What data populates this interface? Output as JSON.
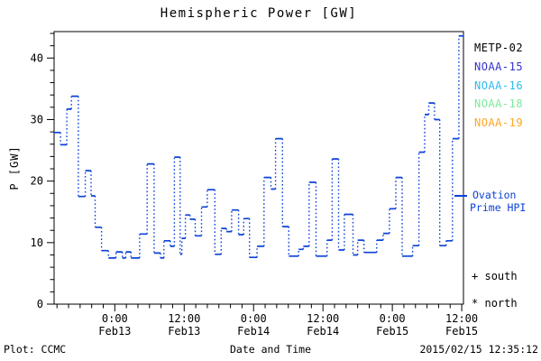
{
  "title": "Hemispheric Power [GW]",
  "y_axis": {
    "label": "P [GW]",
    "ticks": [
      0,
      10,
      20,
      30,
      40
    ],
    "minor_step": 2
  },
  "x_axis": {
    "label": "Date and Time",
    "ticks": [
      {
        "t": 10.5,
        "time": "0:00",
        "date": "Feb13"
      },
      {
        "t": 22.5,
        "time": "12:00",
        "date": "Feb13"
      },
      {
        "t": 34.5,
        "time": "0:00",
        "date": "Feb14"
      },
      {
        "t": 46.5,
        "time": "12:00",
        "date": "Feb14"
      },
      {
        "t": 58.5,
        "time": "0:00",
        "date": "Feb15"
      },
      {
        "t": 70.5,
        "time": "12:00",
        "date": "Feb15"
      }
    ],
    "minor_step_h": 2
  },
  "legend": {
    "satellites": [
      {
        "label": "METP-02",
        "color": "#000000"
      },
      {
        "label": "NOAA-15",
        "color": "#3333CC"
      },
      {
        "label": "NOAA-16",
        "color": "#2FB9F0"
      },
      {
        "label": "NOAA-18",
        "color": "#7FE89E"
      },
      {
        "label": "NOAA-19",
        "color": "#FFA629"
      }
    ],
    "ovation": {
      "line1": "Ovation",
      "line2": "Prime HPI",
      "color": "#0C42D8"
    },
    "markers": [
      {
        "symbol": "+",
        "label": "south"
      },
      {
        "symbol": "*",
        "label": "north"
      }
    ]
  },
  "footer": {
    "left": "Plot: CCMC",
    "right": "2015/02/15 12:35:12"
  },
  "chart_data": {
    "type": "line",
    "style": "step-post, dotted vertical connectors",
    "title": "Hemispheric Power [GW]",
    "xlabel": "Date and Time",
    "ylabel": "P [GW]",
    "ylim": [
      0,
      44.3
    ],
    "xlim_h": [
      0,
      70.8
    ],
    "x_start": "2015-02-12 ~13:30 UT",
    "x_end": "2015-02-15 ~12:20 UT",
    "x_major_tick_every_h": 12,
    "x_minor_tick_every_h": 2,
    "y_minor_tick_every": 2,
    "grid": false,
    "legend_position": "right",
    "series": [
      {
        "name": "Ovation Prime HPI",
        "color": "#0C42D8",
        "units": "GW",
        "steps_t_hours_vs_GW": [
          [
            0.0,
            27.9
          ],
          [
            1.1,
            25.9
          ],
          [
            2.2,
            31.7
          ],
          [
            3.0,
            33.8
          ],
          [
            4.2,
            17.5
          ],
          [
            5.4,
            21.7
          ],
          [
            6.4,
            17.6
          ],
          [
            7.1,
            12.5
          ],
          [
            8.2,
            8.7
          ],
          [
            9.4,
            7.5
          ],
          [
            10.7,
            8.5
          ],
          [
            11.8,
            7.5
          ],
          [
            12.4,
            8.5
          ],
          [
            13.3,
            7.5
          ],
          [
            14.8,
            11.4
          ],
          [
            16.1,
            22.8
          ],
          [
            17.3,
            8.3
          ],
          [
            18.4,
            7.5
          ],
          [
            19.0,
            10.3
          ],
          [
            20.1,
            9.4
          ],
          [
            20.8,
            23.9
          ],
          [
            21.8,
            8.1
          ],
          [
            22.1,
            10.7
          ],
          [
            22.7,
            14.5
          ],
          [
            23.5,
            13.8
          ],
          [
            24.4,
            11.1
          ],
          [
            25.5,
            15.8
          ],
          [
            26.5,
            18.6
          ],
          [
            27.8,
            8.1
          ],
          [
            28.9,
            12.3
          ],
          [
            29.8,
            11.8
          ],
          [
            30.7,
            15.3
          ],
          [
            31.9,
            11.3
          ],
          [
            32.8,
            13.9
          ],
          [
            33.8,
            7.6
          ],
          [
            35.1,
            9.4
          ],
          [
            36.3,
            20.6
          ],
          [
            37.5,
            18.7
          ],
          [
            38.3,
            26.9
          ],
          [
            39.5,
            12.6
          ],
          [
            40.6,
            7.8
          ],
          [
            42.3,
            8.9
          ],
          [
            43.1,
            9.4
          ],
          [
            44.1,
            19.8
          ],
          [
            45.3,
            7.8
          ],
          [
            47.2,
            10.4
          ],
          [
            48.1,
            23.6
          ],
          [
            49.2,
            8.8
          ],
          [
            50.2,
            14.6
          ],
          [
            51.7,
            8.0
          ],
          [
            52.5,
            10.4
          ],
          [
            53.6,
            8.4
          ],
          [
            55.8,
            10.4
          ],
          [
            56.9,
            11.5
          ],
          [
            58.0,
            15.5
          ],
          [
            59.1,
            20.6
          ],
          [
            60.2,
            7.8
          ],
          [
            62.0,
            9.5
          ],
          [
            63.1,
            24.7
          ],
          [
            64.1,
            30.8
          ],
          [
            64.8,
            32.7
          ],
          [
            65.8,
            30.0
          ],
          [
            66.7,
            9.5
          ],
          [
            67.8,
            10.3
          ],
          [
            68.9,
            26.9
          ],
          [
            70.0,
            43.6
          ]
        ]
      }
    ]
  }
}
